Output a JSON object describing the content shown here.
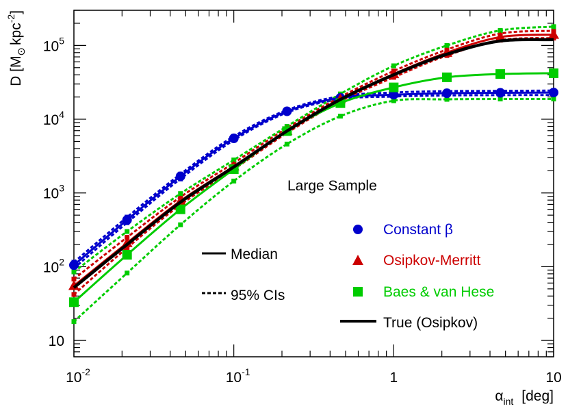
{
  "chart_data": {
    "type": "line",
    "title": "",
    "annotation": "Large Sample",
    "xlabel": {
      "symbol": "α",
      "subscript": "int",
      "unit": "[deg]"
    },
    "ylabel": {
      "main": "D [M",
      "sub": "⊙",
      "unit": "kpc",
      "exp": "-2",
      "close": "]"
    },
    "xscale": "log",
    "yscale": "log",
    "xlim": [
      0.01,
      10
    ],
    "ylim": [
      6,
      300000
    ],
    "x_ticks": [
      {
        "value": 0.01,
        "base": "10",
        "exp": "-2"
      },
      {
        "value": 0.1,
        "base": "10",
        "exp": "-1"
      },
      {
        "value": 1,
        "base": "1",
        "exp": ""
      },
      {
        "value": 10,
        "base": "10",
        "exp": ""
      }
    ],
    "y_ticks": [
      {
        "value": 10,
        "base": "10",
        "exp": ""
      },
      {
        "value": 100,
        "base": "10",
        "exp": "2"
      },
      {
        "value": 1000,
        "base": "10",
        "exp": "3"
      },
      {
        "value": 10000,
        "base": "10",
        "exp": "4"
      },
      {
        "value": 100000,
        "base": "10",
        "exp": "5"
      }
    ],
    "x": [
      0.01,
      0.0215,
      0.0464,
      0.1,
      0.215,
      0.464,
      1,
      2.15,
      4.64,
      10
    ],
    "colors": {
      "constant_beta": "#0000cc",
      "osipkov_merritt": "#cc0000",
      "baes": "#00cc00",
      "true": "#000000"
    },
    "series": [
      {
        "name": "Constant β",
        "color": "#0000cc",
        "marker": "circle",
        "role": "median",
        "values": [
          105,
          430,
          1680,
          5500,
          12800,
          19500,
          21500,
          22500,
          22800,
          23000
        ]
      },
      {
        "name": "Constant β upper 95% CI",
        "color": "#0000cc",
        "role": "ci",
        "values": [
          115,
          470,
          1800,
          5850,
          13300,
          20500,
          23000,
          24000,
          24200,
          24500
        ]
      },
      {
        "name": "Constant β lower 95% CI",
        "color": "#0000cc",
        "role": "ci",
        "values": [
          95,
          395,
          1550,
          5200,
          12300,
          18700,
          20300,
          21000,
          21200,
          21300
        ]
      },
      {
        "name": "Osipkov-Merritt",
        "color": "#cc0000",
        "marker": "triangle",
        "role": "median",
        "values": [
          55,
          210,
          780,
          2300,
          7000,
          18800,
          41000,
          80000,
          130000,
          140000
        ]
      },
      {
        "name": "Osipkov-Merritt upper 95% CI",
        "color": "#cc0000",
        "role": "ci",
        "values": [
          68,
          250,
          880,
          2550,
          7600,
          20000,
          45000,
          88000,
          145000,
          158000
        ]
      },
      {
        "name": "Osipkov-Merritt lower 95% CI",
        "color": "#cc0000",
        "role": "ci",
        "values": [
          42,
          180,
          690,
          2100,
          6500,
          17500,
          37000,
          73000,
          118000,
          126000
        ]
      },
      {
        "name": "Baes & van Hese",
        "color": "#00cc00",
        "marker": "square",
        "role": "median",
        "values": [
          33,
          145,
          600,
          2100,
          6900,
          16500,
          27000,
          37000,
          41000,
          42000
        ]
      },
      {
        "name": "Baes & van Hese upper 95% CI",
        "color": "#00cc00",
        "role": "ci",
        "values": [
          85,
          300,
          980,
          2800,
          8000,
          22000,
          53000,
          100000,
          160000,
          180000
        ]
      },
      {
        "name": "Baes & van Hese lower 95% CI",
        "color": "#00cc00",
        "role": "ci",
        "values": [
          18,
          82,
          370,
          1450,
          4600,
          11000,
          17800,
          18600,
          18800,
          18800
        ]
      },
      {
        "name": "True (Osipkov)",
        "color": "#000000",
        "marker": "",
        "role": "true",
        "values": [
          52,
          200,
          750,
          2250,
          6900,
          18500,
          40000,
          76000,
          115000,
          120000
        ]
      }
    ],
    "legend": {
      "placement": "bottom-right",
      "entries": [
        "Constant β",
        "Osipkov-Merritt",
        "Baes & van Hese",
        "True (Osipkov)"
      ]
    },
    "line_key": {
      "median": "Median",
      "ci": "95% CIs"
    }
  }
}
